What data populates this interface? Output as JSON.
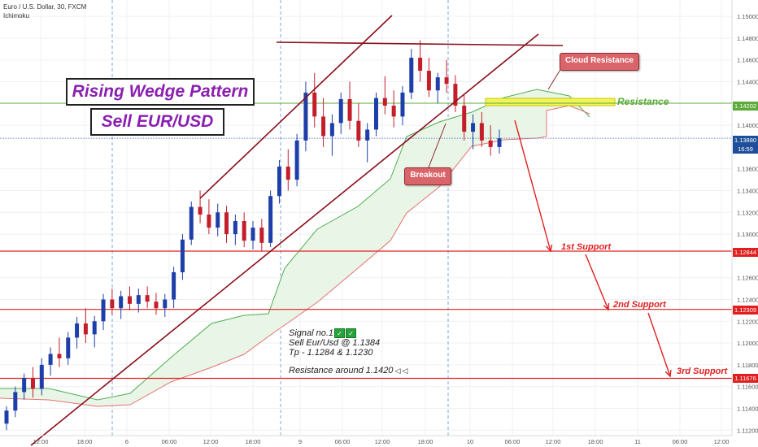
{
  "header": {
    "title": "Euro / U.S. Dollar, 30, FXCM",
    "indicator": "Ichimoku"
  },
  "annotations": {
    "pattern_title": "Rising Wedge Pattern",
    "trade_title": "Sell EUR/USD",
    "cloud_resistance": "Cloud Resistance",
    "breakout": "Breakout",
    "resistance": "Resistance",
    "support1": "1st Support",
    "support2": "2nd Support",
    "support3": "3rd Support",
    "signal_line1": "Signal no.1",
    "signal_line2": "Sell Eur/Usd @ 1.1384",
    "signal_line3": "Tp - 1.1284 & 1.1230",
    "signal_line4": "Resistance around 1.1420"
  },
  "price_tags": {
    "resistance": "1.14202",
    "current": "1.13880",
    "countdown": "16:59",
    "support1": "1.12844",
    "support2": "1.12309",
    "support3": "1.11676"
  },
  "colors": {
    "bull": "#1f3fa8",
    "bear": "#c41e2a",
    "wedge": "#8b0f1a",
    "support": "#e02020",
    "resistance": "#5cab3a",
    "title_text": "#8a1fb0",
    "cloud_fill": "#e9f5e6"
  },
  "chart_data": {
    "type": "candlestick",
    "title": "Euro / U.S. Dollar, 30, FXCM",
    "indicator": "Ichimoku",
    "y_range": [
      1.1115,
      1.1515
    ],
    "price_ticks": [
      "1.15000",
      "1.14800",
      "1.14600",
      "1.14400",
      "1.14000",
      "1.13600",
      "1.13400",
      "1.13200",
      "1.13000",
      "1.12600",
      "1.12400",
      "1.12200",
      "1.12000",
      "1.11800",
      "1.11600",
      "1.11400",
      "1.11200"
    ],
    "time_ticks": [
      "12:00",
      "18:00",
      "6",
      "06:00",
      "12:00",
      "18:00",
      "9",
      "06:00",
      "12:00",
      "18:00",
      "10",
      "06:00",
      "12:00",
      "18:00",
      "11",
      "06:00",
      "12:00"
    ],
    "levels": {
      "resistance": 1.14202,
      "current": 1.1388,
      "support1": 1.12844,
      "support2": 1.12309,
      "support3": 1.11676
    },
    "candles_approx": [
      [
        1.1126,
        1.1142,
        1.112,
        1.1138
      ],
      [
        1.1138,
        1.116,
        1.1132,
        1.1155
      ],
      [
        1.1155,
        1.1172,
        1.1148,
        1.1168
      ],
      [
        1.1168,
        1.1178,
        1.115,
        1.1158
      ],
      [
        1.1158,
        1.1186,
        1.1152,
        1.118
      ],
      [
        1.118,
        1.1196,
        1.117,
        1.119
      ],
      [
        1.119,
        1.1205,
        1.1178,
        1.1186
      ],
      [
        1.1186,
        1.121,
        1.118,
        1.1205
      ],
      [
        1.1205,
        1.1224,
        1.1195,
        1.1218
      ],
      [
        1.1218,
        1.1232,
        1.12,
        1.1208
      ],
      [
        1.1208,
        1.1225,
        1.1196,
        1.122
      ],
      [
        1.122,
        1.1245,
        1.1212,
        1.124
      ],
      [
        1.124,
        1.125,
        1.1226,
        1.1232
      ],
      [
        1.1232,
        1.1248,
        1.1222,
        1.1243
      ],
      [
        1.1243,
        1.1252,
        1.123,
        1.1236
      ],
      [
        1.1236,
        1.125,
        1.1228,
        1.1244
      ],
      [
        1.1244,
        1.1252,
        1.1232,
        1.1238
      ],
      [
        1.1238,
        1.1246,
        1.1226,
        1.1232
      ],
      [
        1.1232,
        1.1245,
        1.1224,
        1.124
      ],
      [
        1.124,
        1.127,
        1.1232,
        1.1265
      ],
      [
        1.1265,
        1.13,
        1.1258,
        1.1295
      ],
      [
        1.1295,
        1.133,
        1.129,
        1.1325
      ],
      [
        1.1325,
        1.134,
        1.131,
        1.1318
      ],
      [
        1.1318,
        1.1332,
        1.13,
        1.1306
      ],
      [
        1.1306,
        1.1328,
        1.1298,
        1.132
      ],
      [
        1.132,
        1.1326,
        1.1292,
        1.13
      ],
      [
        1.13,
        1.1318,
        1.129,
        1.1312
      ],
      [
        1.1312,
        1.132,
        1.1288,
        1.1294
      ],
      [
        1.1294,
        1.1312,
        1.1286,
        1.1306
      ],
      [
        1.1306,
        1.1314,
        1.1284,
        1.1292
      ],
      [
        1.1292,
        1.134,
        1.1288,
        1.1335
      ],
      [
        1.1335,
        1.1368,
        1.1328,
        1.1362
      ],
      [
        1.1362,
        1.1378,
        1.134,
        1.135
      ],
      [
        1.135,
        1.1392,
        1.1344,
        1.1386
      ],
      [
        1.1386,
        1.144,
        1.1376,
        1.143
      ],
      [
        1.143,
        1.1448,
        1.1398,
        1.1408
      ],
      [
        1.1408,
        1.1425,
        1.138,
        1.139
      ],
      [
        1.139,
        1.141,
        1.1372,
        1.1402
      ],
      [
        1.1402,
        1.143,
        1.1392,
        1.1424
      ],
      [
        1.1424,
        1.144,
        1.1396,
        1.1404
      ],
      [
        1.1404,
        1.142,
        1.138,
        1.1386
      ],
      [
        1.1386,
        1.1402,
        1.1366,
        1.1396
      ],
      [
        1.1396,
        1.143,
        1.139,
        1.1425
      ],
      [
        1.1425,
        1.1445,
        1.141,
        1.1418
      ],
      [
        1.1418,
        1.1432,
        1.1398,
        1.1408
      ],
      [
        1.1408,
        1.1436,
        1.14,
        1.143
      ],
      [
        1.143,
        1.147,
        1.1424,
        1.1462
      ],
      [
        1.1462,
        1.1478,
        1.144,
        1.145
      ],
      [
        1.145,
        1.1462,
        1.1426,
        1.1432
      ],
      [
        1.1432,
        1.1448,
        1.142,
        1.1444
      ],
      [
        1.1444,
        1.146,
        1.143,
        1.1438
      ],
      [
        1.1438,
        1.1446,
        1.1412,
        1.1418
      ],
      [
        1.1418,
        1.1428,
        1.1386,
        1.1394
      ],
      [
        1.1394,
        1.141,
        1.1378,
        1.1402
      ],
      [
        1.1402,
        1.1412,
        1.138,
        1.1386
      ],
      [
        1.1386,
        1.14,
        1.1372,
        1.138
      ],
      [
        1.138,
        1.1396,
        1.1374,
        1.1388
      ]
    ]
  }
}
